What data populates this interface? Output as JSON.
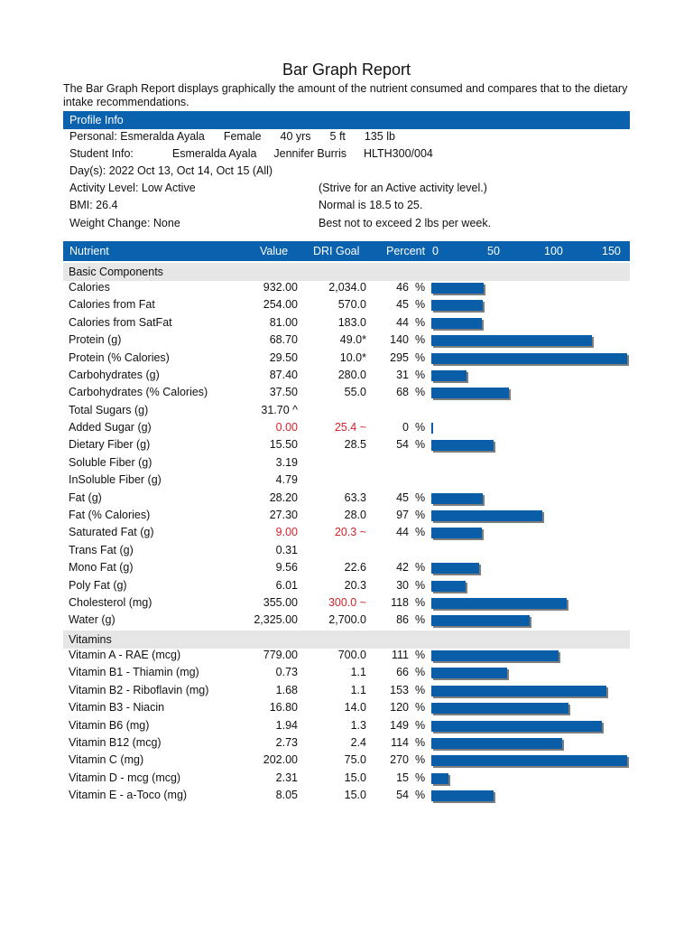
{
  "title": "Bar Graph Report",
  "intro": "The Bar Graph Report displays graphically the amount of the nutrient consumed and compares that to the dietary intake recommendations.",
  "profile": {
    "header": "Profile Info",
    "personal_label": "Personal:",
    "personal_name": "Esmeralda Ayala",
    "sex": "Female",
    "age": "40 yrs",
    "height": "5 ft",
    "weight": "135 lb",
    "student_label": "Student Info:",
    "student_name": "Esmeralda Ayala",
    "instructor": "Jennifer Burris",
    "course": "HLTH300/004",
    "days": "Day(s):  2022 Oct 13, Oct 14, Oct 15 (All)",
    "activity": "Activity Level: Low Active",
    "activity_note": "(Strive for an Active activity level.)",
    "bmi": "BMI: 26.4",
    "bmi_note": "Normal is 18.5 to 25.",
    "weight_change": "Weight Change: None",
    "weight_note": "Best not to exceed 2 lbs per week."
  },
  "table_header": {
    "nutrient": "Nutrient",
    "value": "Value",
    "dri": "DRI Goal",
    "percent": "Percent",
    "scale": [
      "0",
      "50",
      "100",
      "150"
    ]
  },
  "percent_sign": "%",
  "sections": [
    {
      "label": "Basic Components",
      "rows": [
        {
          "name": "Calories",
          "value": "932.00",
          "dri": "2,034.0",
          "pct": "46",
          "pct_num": 46
        },
        {
          "name": "Calories from Fat",
          "value": "254.00",
          "dri": "570.0",
          "pct": "45",
          "pct_num": 45
        },
        {
          "name": "Calories from SatFat",
          "value": "81.00",
          "dri": "183.0",
          "pct": "44",
          "pct_num": 44
        },
        {
          "name": "Protein (g)",
          "value": "68.70",
          "dri": "49.0*",
          "pct": "140",
          "pct_num": 140
        },
        {
          "name": "Protein (% Calories)",
          "value": "29.50",
          "dri": "10.0*",
          "pct": "295",
          "pct_num": 295
        },
        {
          "name": "Carbohydrates (g)",
          "value": "87.40",
          "dri": "280.0",
          "pct": "31",
          "pct_num": 31
        },
        {
          "name": "Carbohydrates (% Calories)",
          "value": "37.50",
          "dri": "55.0",
          "pct": "68",
          "pct_num": 68
        },
        {
          "name": "Total Sugars (g)",
          "value": "31.70 ^",
          "dri": "",
          "pct": "",
          "pct_num": null
        },
        {
          "name": "Added Sugar (g)",
          "value": "0.00",
          "dri": "25.4 ~",
          "pct": "0",
          "pct_num": 0,
          "red": true
        },
        {
          "name": "Dietary Fiber (g)",
          "value": "15.50",
          "dri": "28.5",
          "pct": "54",
          "pct_num": 54
        },
        {
          "name": "Soluble Fiber (g)",
          "value": "3.19",
          "dri": "",
          "pct": "",
          "pct_num": null
        },
        {
          "name": "InSoluble Fiber (g)",
          "value": "4.79",
          "dri": "",
          "pct": "",
          "pct_num": null
        },
        {
          "name": "Fat (g)",
          "value": "28.20",
          "dri": "63.3",
          "pct": "45",
          "pct_num": 45
        },
        {
          "name": "Fat (% Calories)",
          "value": "27.30",
          "dri": "28.0",
          "pct": "97",
          "pct_num": 97
        },
        {
          "name": "Saturated Fat (g)",
          "value": "9.00",
          "dri": "20.3 ~",
          "pct": "44",
          "pct_num": 44,
          "red": true
        },
        {
          "name": "Trans Fat (g)",
          "value": "0.31",
          "dri": "",
          "pct": "",
          "pct_num": null
        },
        {
          "name": "Mono Fat (g)",
          "value": "9.56",
          "dri": "22.6",
          "pct": "42",
          "pct_num": 42
        },
        {
          "name": "Poly Fat (g)",
          "value": "6.01",
          "dri": "20.3",
          "pct": "30",
          "pct_num": 30
        },
        {
          "name": "Cholesterol (mg)",
          "value": "355.00",
          "dri": "300.0 ~",
          "pct": "118",
          "pct_num": 118,
          "red_dri": true
        },
        {
          "name": "Water (g)",
          "value": "2,325.00",
          "dri": "2,700.0",
          "pct": "86",
          "pct_num": 86
        }
      ]
    },
    {
      "label": "Vitamins",
      "rows": [
        {
          "name": "Vitamin A - RAE (mcg)",
          "value": "779.00",
          "dri": "700.0",
          "pct": "111",
          "pct_num": 111
        },
        {
          "name": "Vitamin B1 - Thiamin (mg)",
          "value": "0.73",
          "dri": "1.1",
          "pct": "66",
          "pct_num": 66
        },
        {
          "name": "Vitamin B2 - Riboflavin (mg)",
          "value": "1.68",
          "dri": "1.1",
          "pct": "153",
          "pct_num": 153
        },
        {
          "name": "Vitamin B3 - Niacin",
          "value": "16.80",
          "dri": "14.0",
          "pct": "120",
          "pct_num": 120
        },
        {
          "name": "Vitamin B6 (mg)",
          "value": "1.94",
          "dri": "1.3",
          "pct": "149",
          "pct_num": 149
        },
        {
          "name": "Vitamin B12 (mcg)",
          "value": "2.73",
          "dri": "2.4",
          "pct": "114",
          "pct_num": 114
        },
        {
          "name": "Vitamin C (mg)",
          "value": "202.00",
          "dri": "75.0",
          "pct": "270",
          "pct_num": 270
        },
        {
          "name": "Vitamin D - mcg (mcg)",
          "value": "2.31",
          "dri": "15.0",
          "pct": "15",
          "pct_num": 15
        },
        {
          "name": "Vitamin E - a-Toco (mg)",
          "value": "8.05",
          "dri": "15.0",
          "pct": "54",
          "pct_num": 54
        }
      ]
    }
  ],
  "colors": {
    "header": "#0a62ae",
    "bar": "#0a5ea8",
    "shadow": "#7d7d7d",
    "warn": "#d2232a",
    "section": "#e6e6e6"
  }
}
